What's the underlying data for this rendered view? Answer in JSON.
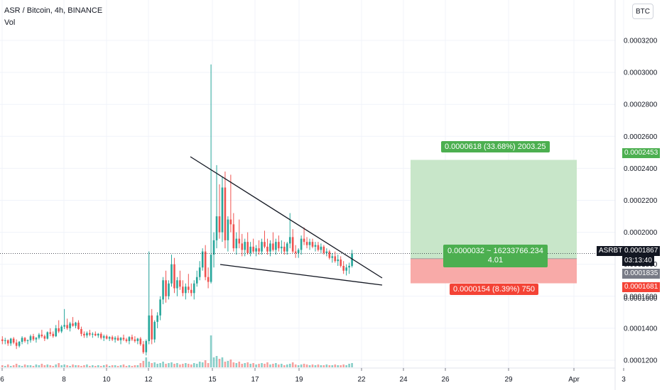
{
  "header": {
    "title": "ASR / Bitcoin, 4h, BINANCE",
    "volume_label": "Vol",
    "currency_button": "BTC"
  },
  "position": {
    "profit_label": "0.0000618 (33.68%) 2003.25",
    "entry_label_line1": "0.0000032 ~ 16233766.234",
    "entry_label_line2": "4.01",
    "loss_label": "0.0000154 (8.39%) 750",
    "target_price": 0.0002453,
    "entry_price": 0.0001835,
    "stop_price": 0.0001681
  },
  "price_tags": {
    "symbol": "ASRBTC",
    "last_price": "0.0001867",
    "countdown": "03:13:40",
    "target": "0.0002453",
    "entry": "0.0001835",
    "stop": "0.0001681",
    "partial_below": "0.0001600"
  },
  "colors": {
    "up": "#26a69a",
    "down": "#ef5350",
    "profit_fill": "#c8e6c9",
    "loss_fill": "#f8aaa8",
    "profit_label": "#4caf50",
    "loss_label": "#f44336",
    "grid": "#f0f3fa"
  },
  "chart_data": {
    "type": "candlestick",
    "title": "ASR / Bitcoin, 4h, BINANCE",
    "y_axis_labels": [
      "0.0003200",
      "0.0003000",
      "0.0002800",
      "0.0002600",
      "0.0002400",
      "0.0002200",
      "0.0002000",
      "0.0001800",
      "0.0001600",
      "0.0001400",
      "0.0001200"
    ],
    "x_axis_labels": [
      "6",
      "8",
      "10",
      "12",
      "15",
      "17",
      "19",
      "22",
      "24",
      "26",
      "29",
      "Apr",
      "3"
    ],
    "ylim": [
      0.000115,
      0.00034
    ],
    "last_price": 0.0001867,
    "candles": [
      [
        0.000133,
        0.000135,
        0.00013,
        0.000132
      ],
      [
        0.000132,
        0.000134,
        0.00013,
        0.0001325
      ],
      [
        0.0001325,
        0.000133,
        0.000129,
        0.0001305
      ],
      [
        0.0001305,
        0.000134,
        0.000129,
        0.0001335
      ],
      [
        0.0001335,
        0.0001345,
        0.00013,
        0.000131
      ],
      [
        0.000131,
        0.000133,
        0.000127,
        0.000129
      ],
      [
        0.000129,
        0.000132,
        0.000128,
        0.0001315
      ],
      [
        0.0001315,
        0.000135,
        0.00013,
        0.000134
      ],
      [
        0.000134,
        0.0001345,
        0.000131,
        0.000132
      ],
      [
        0.000132,
        0.000133,
        0.00013,
        0.0001325
      ],
      [
        0.0001325,
        0.000136,
        0.000131,
        0.000135
      ],
      [
        0.000135,
        0.0001365,
        0.000132,
        0.000133
      ],
      [
        0.000133,
        0.0001345,
        0.000131,
        0.000134
      ],
      [
        0.000134,
        0.000137,
        0.000133,
        0.000136
      ],
      [
        0.000136,
        0.000139,
        0.000134,
        0.000135
      ],
      [
        0.000135,
        0.000136,
        0.000132,
        0.0001335
      ],
      [
        0.0001335,
        0.000138,
        0.000133,
        0.0001375
      ],
      [
        0.0001375,
        0.00014,
        0.000135,
        0.0001365
      ],
      [
        0.0001365,
        0.000138,
        0.000134,
        0.000135
      ],
      [
        0.000135,
        0.000142,
        0.0001345,
        0.00014
      ],
      [
        0.00014,
        0.000145,
        0.000137,
        0.000138
      ],
      [
        0.000138,
        0.000142,
        0.000137,
        0.000141
      ],
      [
        0.000141,
        0.000152,
        0.0001395,
        0.000142
      ],
      [
        0.000142,
        0.000146,
        0.000139,
        0.00014
      ],
      [
        0.00014,
        0.000144,
        0.000138,
        0.000143
      ],
      [
        0.000143,
        0.000147,
        0.000141,
        0.0001415
      ],
      [
        0.0001415,
        0.000144,
        0.00014,
        0.0001435
      ],
      [
        0.0001435,
        0.000145,
        0.000139,
        0.0001395
      ],
      [
        0.0001395,
        0.000141,
        0.000135,
        0.0001365
      ],
      [
        0.0001365,
        0.000138,
        0.000134,
        0.0001355
      ],
      [
        0.0001355,
        0.000138,
        0.000134,
        0.000137
      ],
      [
        0.000137,
        0.000139,
        0.000135,
        0.000136
      ],
      [
        0.000136,
        0.0001375,
        0.000134,
        0.0001365
      ],
      [
        0.0001365,
        0.000138,
        0.000135,
        0.0001355
      ],
      [
        0.0001355,
        0.000137,
        0.000134,
        0.0001365
      ],
      [
        0.0001365,
        0.0001375,
        0.000133,
        0.000134
      ],
      [
        0.000134,
        0.000136,
        0.000132,
        0.000135
      ],
      [
        0.000135,
        0.000136,
        0.000133,
        0.0001335
      ],
      [
        0.0001335,
        0.000135,
        0.000132,
        0.0001345
      ],
      [
        0.0001345,
        0.0001355,
        0.000132,
        0.000133
      ],
      [
        0.000133,
        0.000135,
        0.000131,
        0.000134
      ],
      [
        0.000134,
        0.0001355,
        0.000132,
        0.0001325
      ],
      [
        0.0001325,
        0.0001345,
        0.00013,
        0.000134
      ],
      [
        0.000134,
        0.000136,
        0.000132,
        0.000133
      ],
      [
        0.000133,
        0.000134,
        0.000131,
        0.000132
      ],
      [
        0.000132,
        0.000135,
        0.00013,
        0.0001345
      ],
      [
        0.0001345,
        0.000136,
        0.000132,
        0.000133
      ],
      [
        0.000133,
        0.000135,
        0.000131,
        0.000132
      ],
      [
        0.000132,
        0.000134,
        0.00013,
        0.0001335
      ],
      [
        0.0001335,
        0.0001345,
        0.000129,
        0.00013
      ],
      [
        0.00013,
        0.000132,
        0.000124,
        0.000125
      ],
      [
        0.000125,
        0.000133,
        0.000123,
        0.000132
      ],
      [
        0.000132,
        0.000188,
        0.00013,
        0.000148
      ],
      [
        0.000148,
        0.000152,
        0.00013,
        0.000133
      ],
      [
        0.000133,
        0.000145,
        0.000131,
        0.000144
      ],
      [
        0.000144,
        0.00015,
        0.00014,
        0.000148
      ],
      [
        0.000148,
        0.00016,
        0.000145,
        0.000158
      ],
      [
        0.000158,
        0.000172,
        0.000155,
        0.00017
      ],
      [
        0.00017,
        0.000176,
        0.000156,
        0.00016
      ],
      [
        0.00016,
        0.00017,
        0.000158,
        0.000168
      ],
      [
        0.000168,
        0.000186,
        0.000166,
        0.00018
      ],
      [
        0.00018,
        0.000184,
        0.000162,
        0.000165
      ],
      [
        0.000165,
        0.000172,
        0.00016,
        0.00017
      ],
      [
        0.00017,
        0.000176,
        0.000164,
        0.000166
      ],
      [
        0.000166,
        0.00017,
        0.00016,
        0.000162
      ],
      [
        0.000162,
        0.000168,
        0.000158,
        0.000166
      ],
      [
        0.000166,
        0.000174,
        0.000162,
        0.000164
      ],
      [
        0.000164,
        0.000168,
        0.00016,
        0.000162
      ],
      [
        0.000162,
        0.00017,
        0.000158,
        0.000168
      ],
      [
        0.000168,
        0.000176,
        0.000166,
        0.000172
      ],
      [
        0.000172,
        0.000182,
        0.00017,
        0.000178
      ],
      [
        0.000178,
        0.00019,
        0.000176,
        0.000188
      ],
      [
        0.000188,
        0.000192,
        0.00017,
        0.000172
      ],
      [
        0.000172,
        0.000178,
        0.000165,
        0.000169
      ],
      [
        0.000169,
        0.000305,
        0.000168,
        0.000186
      ],
      [
        0.000186,
        0.0002,
        0.000178,
        0.000195
      ],
      [
        0.000195,
        0.000242,
        0.00019,
        0.00021
      ],
      [
        0.00021,
        0.00023,
        0.000196,
        0.0002
      ],
      [
        0.0002,
        0.000235,
        0.000194,
        0.000228
      ],
      [
        0.000228,
        0.000238,
        0.00019,
        0.000195
      ],
      [
        0.000195,
        0.00021,
        0.000188,
        0.000208
      ],
      [
        0.000208,
        0.000236,
        0.0002,
        0.000205
      ],
      [
        0.000205,
        0.000212,
        0.000188,
        0.00019
      ],
      [
        0.00019,
        0.0002,
        0.000186,
        0.000196
      ],
      [
        0.000196,
        0.000208,
        0.00019,
        0.000193
      ],
      [
        0.000193,
        0.000199,
        0.000185,
        0.000189
      ],
      [
        0.000189,
        0.000196,
        0.000185,
        0.000194
      ],
      [
        0.000194,
        0.0002,
        0.000186,
        0.000187
      ],
      [
        0.000187,
        0.000194,
        0.000185,
        0.000191
      ],
      [
        0.000191,
        0.000196,
        0.000187,
        0.000188
      ],
      [
        0.000188,
        0.000192,
        0.000185,
        0.00019
      ],
      [
        0.00019,
        0.000195,
        0.000186,
        0.000188
      ],
      [
        0.000188,
        0.000196,
        0.000186,
        0.000194
      ],
      [
        0.000194,
        0.000201,
        0.00019,
        0.000191
      ],
      [
        0.000191,
        0.000196,
        0.000186,
        0.000188
      ],
      [
        0.000188,
        0.000195,
        0.000185,
        0.000193
      ],
      [
        0.000193,
        0.0002,
        0.000188,
        0.000189
      ],
      [
        0.000189,
        0.000196,
        0.000186,
        0.000194
      ],
      [
        0.000194,
        0.000198,
        0.000188,
        0.00019
      ],
      [
        0.00019,
        0.000195,
        0.000187,
        0.000191
      ],
      [
        0.000191,
        0.000194,
        0.000186,
        0.000188
      ],
      [
        0.000188,
        0.000194,
        0.000186,
        0.000193
      ],
      [
        0.000193,
        0.000212,
        0.00019,
        0.000197
      ],
      [
        0.000197,
        0.000202,
        0.000187,
        0.000188
      ],
      [
        0.000188,
        0.000192,
        0.000184,
        0.000187
      ],
      [
        0.000187,
        0.00019,
        0.000184,
        0.000189
      ],
      [
        0.000189,
        0.000198,
        0.000186,
        0.000196
      ],
      [
        0.000196,
        0.000203,
        0.000192,
        0.000194
      ],
      [
        0.000194,
        0.000197,
        0.00019,
        0.000192
      ],
      [
        0.000192,
        0.000196,
        0.000189,
        0.000194
      ],
      [
        0.000194,
        0.000196,
        0.00019,
        0.000191
      ],
      [
        0.000191,
        0.000194,
        0.000188,
        0.000192
      ],
      [
        0.000192,
        0.000194,
        0.000188,
        0.000189
      ],
      [
        0.000189,
        0.000193,
        0.000187,
        0.000191
      ],
      [
        0.000191,
        0.000192,
        0.000186,
        0.000187
      ],
      [
        0.000187,
        0.00019,
        0.000185,
        0.000188
      ],
      [
        0.000188,
        0.000189,
        0.000183,
        0.000184
      ],
      [
        0.000184,
        0.000187,
        0.000181,
        0.000185
      ],
      [
        0.000185,
        0.000188,
        0.000181,
        0.000182
      ],
      [
        0.000182,
        0.000186,
        0.000179,
        0.000183
      ],
      [
        0.000183,
        0.000185,
        0.000178,
        0.000179
      ],
      [
        0.000179,
        0.000182,
        0.000174,
        0.000176
      ],
      [
        0.000176,
        0.00018,
        0.000173,
        0.000178
      ],
      [
        0.000178,
        0.000181,
        0.000174,
        0.000179
      ],
      [
        0.000179,
        0.000189,
        0.000178,
        0.0001867
      ]
    ],
    "volumes": [
      3,
      2,
      4,
      2,
      3,
      5,
      3,
      2,
      4,
      3,
      3,
      2,
      4,
      3,
      5,
      3,
      4,
      3,
      2,
      4,
      6,
      3,
      4,
      3,
      2,
      4,
      3,
      3,
      2,
      3,
      4,
      2,
      3,
      2,
      3,
      2,
      3,
      4,
      2,
      3,
      3,
      2,
      3,
      4,
      2,
      3,
      2,
      3,
      3,
      6,
      9,
      14,
      8,
      6,
      7,
      5,
      6,
      8,
      5,
      6,
      7,
      5,
      6,
      4,
      5,
      6,
      5,
      4,
      6,
      5,
      8,
      7,
      10,
      6,
      45,
      14,
      16,
      12,
      14,
      8,
      9,
      11,
      7,
      6,
      8,
      5,
      6,
      7,
      5,
      6,
      4,
      5,
      6,
      5,
      7,
      4,
      5,
      6,
      4,
      5,
      3,
      4,
      5,
      7,
      4,
      3,
      4,
      5,
      4,
      3,
      4,
      3,
      4,
      3,
      3,
      4,
      3,
      3,
      4,
      3,
      3,
      4,
      3,
      5,
      6
    ]
  }
}
